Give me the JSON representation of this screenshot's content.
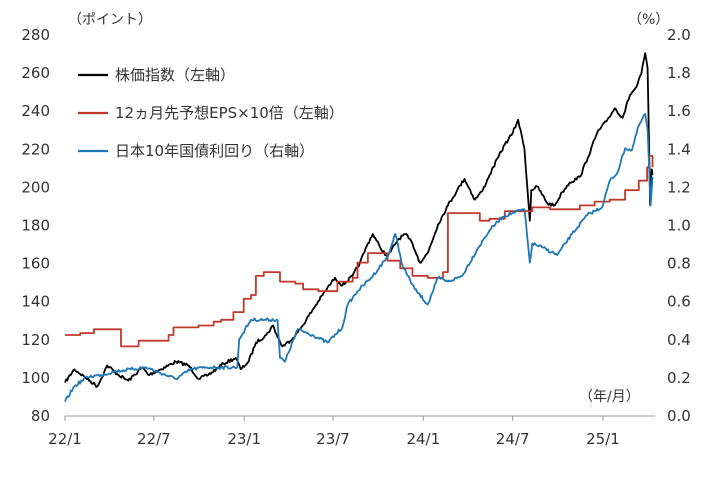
{
  "chart_data": {
    "type": "line",
    "units": {
      "left": "（ポイント）",
      "right": "（%）",
      "x": "（年/月）"
    },
    "x_ticks": [
      "22/1",
      "22/7",
      "23/1",
      "23/7",
      "24/1",
      "24/7",
      "25/1"
    ],
    "left_axis": {
      "ylim": [
        80,
        280
      ],
      "ticks": [
        80,
        100,
        120,
        140,
        160,
        180,
        200,
        220,
        240,
        260,
        280
      ]
    },
    "right_axis": {
      "ylim": [
        0.0,
        2.0
      ],
      "ticks": [
        "0.0",
        "0.2",
        "0.4",
        "0.6",
        "0.8",
        "1.0",
        "1.2",
        "1.4",
        "1.6",
        "1.8",
        "2.0"
      ]
    },
    "grid": false,
    "legend_position": "top-left",
    "colors": {
      "stock": "#000000",
      "eps": "#c0392b",
      "jgb": "#1f77b4",
      "axis_text": "#333333"
    },
    "series": [
      {
        "name": "株価指数（左軸）",
        "axis": "left",
        "values": [
          [
            "2022-01-01",
            97
          ],
          [
            "2022-01-20",
            104
          ],
          [
            "2022-02-10",
            100
          ],
          [
            "2022-03-08",
            95
          ],
          [
            "2022-03-28",
            106
          ],
          [
            "2022-04-20",
            101
          ],
          [
            "2022-05-10",
            98
          ],
          [
            "2022-06-08",
            105
          ],
          [
            "2022-06-20",
            101
          ],
          [
            "2022-07-15",
            104
          ],
          [
            "2022-08-15",
            108
          ],
          [
            "2022-09-10",
            106
          ],
          [
            "2022-09-30",
            99
          ],
          [
            "2022-10-20",
            101
          ],
          [
            "2022-11-20",
            107
          ],
          [
            "2022-12-15",
            110
          ],
          [
            "2022-12-25",
            104
          ],
          [
            "2023-01-10",
            108
          ],
          [
            "2023-01-25",
            118
          ],
          [
            "2023-02-15",
            122
          ],
          [
            "2023-03-01",
            127
          ],
          [
            "2023-03-10",
            121
          ],
          [
            "2023-03-20",
            116
          ],
          [
            "2023-04-05",
            119
          ],
          [
            "2023-04-25",
            125
          ],
          [
            "2023-05-20",
            135
          ],
          [
            "2023-06-15",
            145
          ],
          [
            "2023-07-05",
            152
          ],
          [
            "2023-07-20",
            148
          ],
          [
            "2023-08-10",
            153
          ],
          [
            "2023-08-25",
            160
          ],
          [
            "2023-09-10",
            170
          ],
          [
            "2023-09-20",
            175
          ],
          [
            "2023-10-05",
            168
          ],
          [
            "2023-10-20",
            163
          ],
          [
            "2023-11-10",
            172
          ],
          [
            "2023-11-25",
            175
          ],
          [
            "2023-12-10",
            170
          ],
          [
            "2023-12-25",
            160
          ],
          [
            "2024-01-10",
            165
          ],
          [
            "2024-01-31",
            180
          ],
          [
            "2024-02-20",
            190
          ],
          [
            "2024-03-10",
            198
          ],
          [
            "2024-03-25",
            204
          ],
          [
            "2024-04-15",
            193
          ],
          [
            "2024-05-01",
            198
          ],
          [
            "2024-05-15",
            206
          ],
          [
            "2024-06-01",
            215
          ],
          [
            "2024-06-15",
            222
          ],
          [
            "2024-07-01",
            228
          ],
          [
            "2024-07-12",
            235
          ],
          [
            "2024-07-25",
            220
          ],
          [
            "2024-08-05",
            182
          ],
          [
            "2024-08-08",
            198
          ],
          [
            "2024-08-20",
            200
          ],
          [
            "2024-09-10",
            191
          ],
          [
            "2024-09-25",
            190
          ],
          [
            "2024-10-10",
            197
          ],
          [
            "2024-10-25",
            202
          ],
          [
            "2024-11-15",
            205
          ],
          [
            "2024-12-01",
            215
          ],
          [
            "2024-12-20",
            228
          ],
          [
            "2025-01-10",
            235
          ],
          [
            "2025-01-25",
            241
          ],
          [
            "2025-02-10",
            236
          ],
          [
            "2025-02-25",
            248
          ],
          [
            "2025-03-10",
            252
          ],
          [
            "2025-03-20",
            259
          ],
          [
            "2025-03-28",
            270
          ],
          [
            "2025-04-02",
            262
          ],
          [
            "2025-04-07",
            190
          ],
          [
            "2025-04-10",
            209
          ],
          [
            "2025-04-12",
            206
          ]
        ]
      },
      {
        "name": "12ヵ月先予想EPS×10倍（左軸）",
        "axis": "left",
        "values": [
          [
            "2022-01-01",
            122
          ],
          [
            "2022-02-01",
            123
          ],
          [
            "2022-03-01",
            125
          ],
          [
            "2022-04-20",
            125
          ],
          [
            "2022-04-25",
            116
          ],
          [
            "2022-05-31",
            119
          ],
          [
            "2022-07-31",
            122
          ],
          [
            "2022-08-10",
            126
          ],
          [
            "2022-09-30",
            127
          ],
          [
            "2022-10-31",
            129
          ],
          [
            "2022-11-15",
            130
          ],
          [
            "2022-12-10",
            134
          ],
          [
            "2022-12-31",
            141
          ],
          [
            "2023-01-15",
            143
          ],
          [
            "2023-01-25",
            153
          ],
          [
            "2023-02-10",
            155
          ],
          [
            "2023-03-15",
            150
          ],
          [
            "2023-04-15",
            149
          ],
          [
            "2023-05-01",
            146
          ],
          [
            "2023-06-01",
            145
          ],
          [
            "2023-07-01",
            145
          ],
          [
            "2023-07-10",
            150
          ],
          [
            "2023-08-10",
            152
          ],
          [
            "2023-08-20",
            160
          ],
          [
            "2023-09-10",
            165
          ],
          [
            "2023-10-20",
            161
          ],
          [
            "2023-11-15",
            157
          ],
          [
            "2023-12-10",
            153
          ],
          [
            "2024-01-10",
            152
          ],
          [
            "2024-02-10",
            155
          ],
          [
            "2024-02-20",
            186
          ],
          [
            "2024-04-10",
            186
          ],
          [
            "2024-04-25",
            182
          ],
          [
            "2024-05-15",
            183
          ],
          [
            "2024-06-15",
            187
          ],
          [
            "2024-07-31",
            187
          ],
          [
            "2024-08-10",
            189
          ],
          [
            "2024-09-15",
            188
          ],
          [
            "2024-10-15",
            188
          ],
          [
            "2024-11-15",
            190
          ],
          [
            "2024-12-15",
            192
          ],
          [
            "2025-01-15",
            193
          ],
          [
            "2025-02-15",
            198
          ],
          [
            "2025-03-15",
            203
          ],
          [
            "2025-04-01",
            210
          ],
          [
            "2025-04-05",
            216
          ],
          [
            "2025-04-12",
            210
          ]
        ]
      },
      {
        "name": "日本10年国債利回り（右軸）",
        "axis": "right",
        "values": [
          [
            "2022-01-01",
            0.07
          ],
          [
            "2022-01-20",
            0.15
          ],
          [
            "2022-02-15",
            0.2
          ],
          [
            "2022-03-15",
            0.21
          ],
          [
            "2022-04-15",
            0.23
          ],
          [
            "2022-05-15",
            0.24
          ],
          [
            "2022-06-15",
            0.25
          ],
          [
            "2022-07-15",
            0.22
          ],
          [
            "2022-08-15",
            0.19
          ],
          [
            "2022-09-15",
            0.24
          ],
          [
            "2022-10-15",
            0.25
          ],
          [
            "2022-11-15",
            0.25
          ],
          [
            "2022-12-18",
            0.25
          ],
          [
            "2022-12-22",
            0.4
          ],
          [
            "2023-01-15",
            0.5
          ],
          [
            "2023-02-15",
            0.5
          ],
          [
            "2023-03-10",
            0.5
          ],
          [
            "2023-03-15",
            0.3
          ],
          [
            "2023-03-25",
            0.28
          ],
          [
            "2023-04-20",
            0.45
          ],
          [
            "2023-05-20",
            0.42
          ],
          [
            "2023-06-20",
            0.38
          ],
          [
            "2023-07-20",
            0.46
          ],
          [
            "2023-07-31",
            0.58
          ],
          [
            "2023-08-20",
            0.65
          ],
          [
            "2023-09-20",
            0.73
          ],
          [
            "2023-10-20",
            0.83
          ],
          [
            "2023-11-05",
            0.95
          ],
          [
            "2023-11-20",
            0.78
          ],
          [
            "2023-12-15",
            0.66
          ],
          [
            "2024-01-10",
            0.58
          ],
          [
            "2024-01-31",
            0.72
          ],
          [
            "2024-02-20",
            0.7
          ],
          [
            "2024-03-20",
            0.73
          ],
          [
            "2024-04-20",
            0.87
          ],
          [
            "2024-05-15",
            0.97
          ],
          [
            "2024-06-10",
            1.04
          ],
          [
            "2024-06-30",
            1.06
          ],
          [
            "2024-07-25",
            1.08
          ],
          [
            "2024-08-05",
            0.8
          ],
          [
            "2024-08-10",
            0.9
          ],
          [
            "2024-08-30",
            0.88
          ],
          [
            "2024-09-30",
            0.84
          ],
          [
            "2024-10-30",
            0.95
          ],
          [
            "2024-11-30",
            1.05
          ],
          [
            "2024-12-30",
            1.09
          ],
          [
            "2025-01-15",
            1.23
          ],
          [
            "2025-01-30",
            1.27
          ],
          [
            "2025-02-15",
            1.4
          ],
          [
            "2025-03-01",
            1.39
          ],
          [
            "2025-03-15",
            1.52
          ],
          [
            "2025-03-28",
            1.58
          ],
          [
            "2025-04-02",
            1.5
          ],
          [
            "2025-04-08",
            1.1
          ],
          [
            "2025-04-12",
            1.25
          ]
        ]
      }
    ]
  }
}
